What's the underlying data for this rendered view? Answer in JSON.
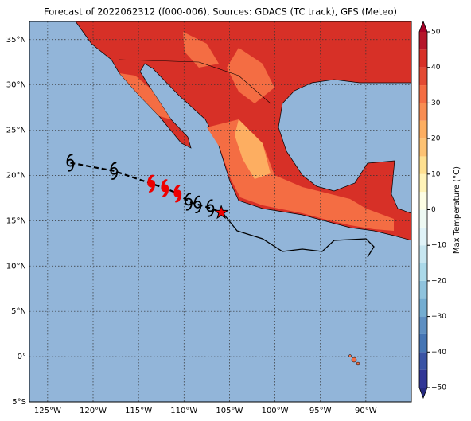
{
  "title": "Forecast of 2022062312 (f000-006), Sources: GDACS (TC track), GFS (Meteo)",
  "map": {
    "xlim": [
      -127,
      -85
    ],
    "ylim": [
      -5,
      37
    ],
    "xticks": [
      {
        "value": -125,
        "label": "125°W"
      },
      {
        "value": -120,
        "label": "120°W"
      },
      {
        "value": -115,
        "label": "115°W"
      },
      {
        "value": -110,
        "label": "110°W"
      },
      {
        "value": -105,
        "label": "105°W"
      },
      {
        "value": -100,
        "label": "100°W"
      },
      {
        "value": -95,
        "label": "95°W"
      },
      {
        "value": -90,
        "label": "90°W"
      }
    ],
    "yticks": [
      {
        "value": -5,
        "label": "5°S"
      },
      {
        "value": 0,
        "label": "0°"
      },
      {
        "value": 5,
        "label": "5°N"
      },
      {
        "value": 10,
        "label": "10°N"
      },
      {
        "value": 15,
        "label": "15°N"
      },
      {
        "value": 20,
        "label": "20°N"
      },
      {
        "value": 25,
        "label": "25°N"
      },
      {
        "value": 30,
        "label": "30°N"
      },
      {
        "value": 35,
        "label": "35°N"
      }
    ],
    "grid": true,
    "ocean_color": "#92b5d9"
  },
  "colorbar": {
    "label": "Max Temperature (°C)",
    "lim": [
      -50,
      50
    ],
    "ticks": [
      {
        "value": -50,
        "label": "−50"
      },
      {
        "value": -40,
        "label": "−40"
      },
      {
        "value": -30,
        "label": "−30"
      },
      {
        "value": -20,
        "label": "−20"
      },
      {
        "value": -10,
        "label": "−10"
      },
      0,
      10,
      20,
      30,
      40,
      50
    ],
    "levels": [
      -50,
      -45,
      -40,
      -35,
      -30,
      -25,
      -20,
      -15,
      -10,
      -5,
      0,
      5,
      10,
      15,
      20,
      25,
      30,
      35,
      40,
      45,
      50
    ],
    "colors": [
      "#313695",
      "#3a53a4",
      "#4575b4",
      "#5e8fc2",
      "#74add1",
      "#8fc3dd",
      "#abd9e9",
      "#c7e6f0",
      "#e0f3f8",
      "#eef9f3",
      "#fdfde4",
      "#fff3b8",
      "#fee090",
      "#fdc273",
      "#fdae61",
      "#f88d52",
      "#f46d43",
      "#e34a33",
      "#d73027",
      "#b5152a"
    ],
    "extend_colors": [
      "#262a80",
      "#a50026"
    ]
  },
  "track": {
    "lon": [
      -122.5,
      -117.7,
      -113.6,
      -112.1,
      -110.7,
      -109.5,
      -108.5,
      -107.1,
      -105.9
    ],
    "lat": [
      21.4,
      20.5,
      19.1,
      18.6,
      18.0,
      17.1,
      16.8,
      16.4,
      15.9
    ],
    "colors": [
      "#000000",
      "#000000",
      "#ee0000",
      "#ee0000",
      "#ee0000",
      "#000000",
      "#000000",
      "#000000",
      "#ee0000"
    ],
    "markers": [
      "cyclone",
      "cyclone",
      "cyclone",
      "cyclone",
      "cyclone",
      "cyclone",
      "cyclone",
      "cyclone",
      "star"
    ]
  }
}
